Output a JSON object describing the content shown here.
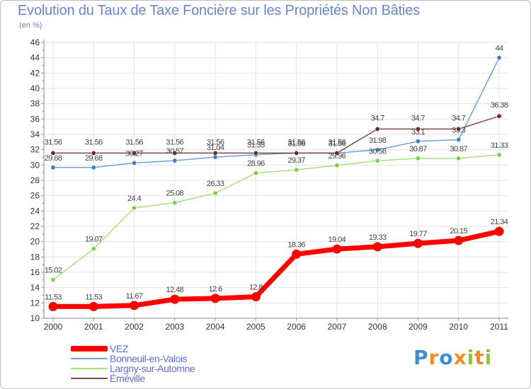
{
  "title": "Evolution du Taux de Taxe Foncière sur les Propriétés Non Bâties",
  "subtitle": "(en %)",
  "logo": {
    "text": "Proxiti",
    "letters": [
      {
        "ch": "P",
        "color": "#3b8fd4"
      },
      {
        "ch": "r",
        "color": "#f08a24"
      },
      {
        "ch": "o",
        "color": "#3b8fd4"
      },
      {
        "ch": "x",
        "color": "#f08a24"
      },
      {
        "ch": "i",
        "color": "#8cc63f"
      },
      {
        "ch": "t",
        "color": "#f08a24"
      },
      {
        "ch": "i",
        "color": "#8cc63f"
      }
    ]
  },
  "chart_data": {
    "type": "line",
    "title": "Evolution du Taux de Taxe Foncière sur les Propriétés Non Bâties",
    "ylabel": "(en %)",
    "xlabel": "",
    "ylim": [
      10,
      46
    ],
    "ytick_step": 2,
    "grid": true,
    "legend": "bottom-left",
    "categories": [
      "2000",
      "2001",
      "2002",
      "2003",
      "2004",
      "2005",
      "2006",
      "2007",
      "2008",
      "2009",
      "2010",
      "2011"
    ],
    "series": [
      {
        "name": "VEZ",
        "color": "#ff0000",
        "marker": "#ff0000",
        "width": 7,
        "values": [
          11.53,
          11.53,
          11.67,
          12.48,
          12.6,
          12.8,
          18.36,
          19.04,
          19.33,
          19.77,
          20.15,
          21.34
        ],
        "labels": [
          "11.53",
          "11.53",
          "11.67",
          "12.48",
          "12.6",
          "12.8",
          "18.36",
          "19.04",
          "19.33",
          "19.77",
          "20.15",
          "21.34"
        ]
      },
      {
        "name": "Bonneuil-en-Valois",
        "color": "#6fa0d8",
        "marker": "#3a7ed0",
        "width": 1.5,
        "values": [
          29.68,
          29.68,
          30.27,
          30.57,
          31.04,
          31.35,
          31.56,
          31.56,
          31.98,
          33.1,
          33.3,
          44
        ],
        "labels": [
          "29.68",
          "29.68",
          "30.27",
          "30.57",
          "31.04",
          "31.35",
          "31.56",
          "31.56",
          "31.98",
          "33.1",
          "33.3",
          "44"
        ]
      },
      {
        "name": "Largny-sur-Automne",
        "color": "#a8e07a",
        "marker": "#7ed040",
        "width": 1.5,
        "values": [
          15.02,
          19.07,
          24.4,
          25.08,
          26.33,
          28.96,
          29.37,
          29.96,
          30.56,
          30.87,
          30.87,
          31.33
        ],
        "labels": [
          "15.02",
          "19.07",
          "24.4",
          "25.08",
          "26.33",
          "28.96",
          "29.37",
          "29.96",
          "30.56",
          "30.87",
          "30.87",
          "31.33"
        ]
      },
      {
        "name": "Éméville",
        "color": "#7a4a4a",
        "marker": "#6b2b2b",
        "width": 1.5,
        "values": [
          31.56,
          31.56,
          31.56,
          31.56,
          31.56,
          31.56,
          31.56,
          31.56,
          34.7,
          34.7,
          34.7,
          36.38
        ],
        "labels": [
          "31.56",
          "31.56",
          "31.56",
          "31.56",
          "31.56",
          "31.56",
          "31.56",
          "31.56",
          "34.7",
          "34.7",
          "34.7",
          "36.38"
        ]
      }
    ]
  }
}
